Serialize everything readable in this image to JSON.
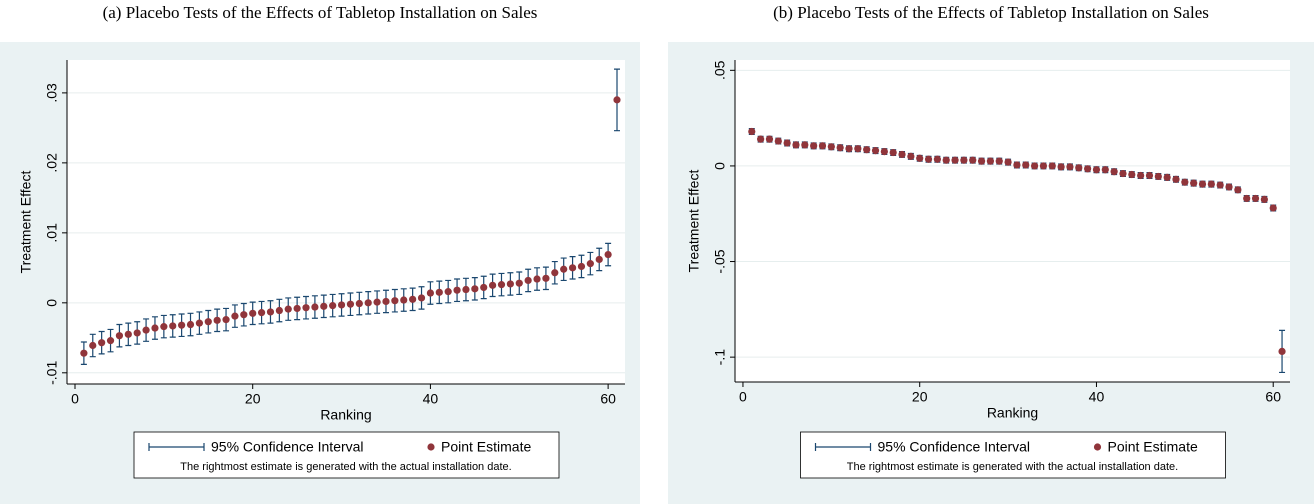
{
  "chart_data": [
    {
      "type": "errorbar",
      "title": "(a) Placebo Tests of the Effects of Tabletop Installation on Sales",
      "xlabel": "Ranking",
      "ylabel": "Treatment Effect",
      "x": [
        1,
        2,
        3,
        4,
        5,
        6,
        7,
        8,
        9,
        10,
        11,
        12,
        13,
        14,
        15,
        16,
        17,
        18,
        19,
        20,
        21,
        22,
        23,
        24,
        25,
        26,
        27,
        28,
        29,
        30,
        31,
        32,
        33,
        34,
        35,
        36,
        37,
        38,
        39,
        40,
        41,
        42,
        43,
        44,
        45,
        46,
        47,
        48,
        49,
        50,
        51,
        52,
        53,
        54,
        55,
        56,
        57,
        58,
        59,
        60,
        61
      ],
      "series": [
        {
          "name": "Point Estimate",
          "color": "#90353b",
          "values": [
            -0.0072,
            -0.0061,
            -0.0057,
            -0.0054,
            -0.0047,
            -0.0045,
            -0.0043,
            -0.0039,
            -0.0036,
            -0.0034,
            -0.0033,
            -0.0032,
            -0.0031,
            -0.0029,
            -0.0027,
            -0.0025,
            -0.0024,
            -0.0019,
            -0.0017,
            -0.0015,
            -0.0014,
            -0.0013,
            -0.0011,
            -0.0009,
            -0.0008,
            -0.0007,
            -0.0006,
            -0.0005,
            -0.0004,
            -0.0003,
            -0.0002,
            -0.0001,
            0,
            0.0001,
            0.0002,
            0.0003,
            0.0004,
            0.0005,
            0.0007,
            0.0014,
            0.0015,
            0.0016,
            0.0018,
            0.0019,
            0.002,
            0.0022,
            0.0025,
            0.0026,
            0.0027,
            0.0028,
            0.0032,
            0.0034,
            0.0035,
            0.0043,
            0.0048,
            0.005,
            0.0052,
            0.0056,
            0.0062,
            0.0069,
            0.029
          ],
          "errors": [
            0.0016,
            0.0016,
            0.0016,
            0.0016,
            0.0016,
            0.0016,
            0.0016,
            0.0016,
            0.0016,
            0.0016,
            0.0016,
            0.0016,
            0.0016,
            0.0016,
            0.0016,
            0.0016,
            0.0016,
            0.0016,
            0.0016,
            0.0016,
            0.0016,
            0.0016,
            0.0016,
            0.0016,
            0.0016,
            0.0016,
            0.0016,
            0.0016,
            0.0016,
            0.0016,
            0.0016,
            0.0016,
            0.0016,
            0.0016,
            0.0016,
            0.0016,
            0.0016,
            0.0016,
            0.0016,
            0.0016,
            0.0016,
            0.0016,
            0.0016,
            0.0016,
            0.0016,
            0.0016,
            0.0016,
            0.0016,
            0.0016,
            0.0016,
            0.0016,
            0.0016,
            0.0016,
            0.0016,
            0.0016,
            0.0016,
            0.0016,
            0.0016,
            0.0016,
            0.0016,
            0.0044
          ]
        }
      ],
      "ci_label": "95% Confidence Interval",
      "ci_color": "#1a476f",
      "note": "The rightmost estimate is generated with the actual installation date.",
      "xlim": [
        -0.9,
        61.9
      ],
      "ylim": [
        -0.0116,
        0.0347
      ],
      "xticks": [
        0,
        20,
        40,
        60
      ],
      "yticks": [
        {
          "value": -0.01,
          "label": "-.01"
        },
        0,
        {
          "value": 0.01,
          "label": ".01"
        },
        {
          "value": 0.02,
          "label": ".02"
        },
        {
          "value": 0.03,
          "label": ".03"
        }
      ],
      "grid": true
    },
    {
      "type": "errorbar",
      "title": "(b) Placebo Tests of the Effects of Tabletop Installation on Sales",
      "xlabel": "Ranking",
      "ylabel": "Treatment Effect",
      "x": [
        1,
        2,
        3,
        4,
        5,
        6,
        7,
        8,
        9,
        10,
        11,
        12,
        13,
        14,
        15,
        16,
        17,
        18,
        19,
        20,
        21,
        22,
        23,
        24,
        25,
        26,
        27,
        28,
        29,
        30,
        31,
        32,
        33,
        34,
        35,
        36,
        37,
        38,
        39,
        40,
        41,
        42,
        43,
        44,
        45,
        46,
        47,
        48,
        49,
        50,
        51,
        52,
        53,
        54,
        55,
        56,
        57,
        58,
        59,
        60,
        61
      ],
      "series": [
        {
          "name": "Point Estimate",
          "color": "#90353b",
          "values": [
            0.018,
            0.014,
            0.014,
            0.013,
            0.012,
            0.011,
            0.011,
            0.0105,
            0.0105,
            0.01,
            0.0095,
            0.009,
            0.009,
            0.0085,
            0.008,
            0.0075,
            0.007,
            0.006,
            0.005,
            0.004,
            0.0035,
            0.0035,
            0.003,
            0.003,
            0.003,
            0.003,
            0.0025,
            0.0025,
            0.0025,
            0.002,
            0.0005,
            0.0005,
            0,
            0,
            0,
            -0.0005,
            -0.0005,
            -0.001,
            -0.0015,
            -0.002,
            -0.002,
            -0.003,
            -0.004,
            -0.0045,
            -0.005,
            -0.005,
            -0.0055,
            -0.006,
            -0.007,
            -0.0085,
            -0.009,
            -0.0095,
            -0.0095,
            -0.01,
            -0.011,
            -0.0125,
            -0.017,
            -0.017,
            -0.0175,
            -0.022,
            -0.097
          ],
          "errors": [
            0.0015,
            0.0015,
            0.0015,
            0.0015,
            0.0015,
            0.0015,
            0.0015,
            0.0015,
            0.0015,
            0.0015,
            0.0015,
            0.0015,
            0.0015,
            0.0015,
            0.0015,
            0.0015,
            0.0015,
            0.0015,
            0.0015,
            0.0015,
            0.0015,
            0.0015,
            0.0015,
            0.0015,
            0.0015,
            0.0015,
            0.0015,
            0.0015,
            0.0015,
            0.0015,
            0.0015,
            0.0015,
            0.0015,
            0.0015,
            0.0015,
            0.0015,
            0.0015,
            0.0015,
            0.0015,
            0.0015,
            0.0015,
            0.0015,
            0.0015,
            0.0015,
            0.0015,
            0.0015,
            0.0015,
            0.0015,
            0.0015,
            0.0015,
            0.0015,
            0.0015,
            0.0015,
            0.0015,
            0.0015,
            0.0015,
            0.0015,
            0.0015,
            0.0015,
            0.0015,
            0.011
          ]
        }
      ],
      "ci_label": "95% Confidence Interval",
      "ci_color": "#1a476f",
      "note": "The rightmost estimate is generated with the actual installation date.",
      "xlim": [
        -0.9,
        61.9
      ],
      "ylim": [
        -0.113,
        0.0554
      ],
      "xticks": [
        0,
        20,
        40,
        60
      ],
      "yticks": [
        {
          "value": -0.1,
          "label": "-.1"
        },
        {
          "value": -0.05,
          "label": "-.05"
        },
        0,
        {
          "value": 0.05,
          "label": ".05"
        }
      ],
      "grid": true
    }
  ]
}
